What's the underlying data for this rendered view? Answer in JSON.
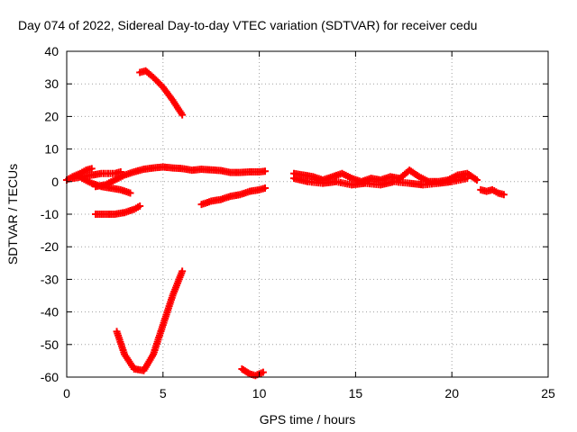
{
  "chart_data": {
    "type": "scatter",
    "title": "Day 074 of 2022, Sidereal Day-to-day VTEC variation (SDTVAR) for receiver cedu",
    "xlabel": "GPS time / hours",
    "ylabel": "SDTVAR / TECUs",
    "xlim": [
      0,
      25
    ],
    "ylim": [
      -60,
      40
    ],
    "xticks": [
      0,
      5,
      10,
      15,
      20,
      25
    ],
    "yticks": [
      -60,
      -50,
      -40,
      -30,
      -20,
      -10,
      0,
      10,
      20,
      30,
      40
    ],
    "grid": true,
    "legend": "none",
    "series_color": "#ff0000",
    "segments": [
      {
        "x": [
          0.0,
          0.3,
          0.7,
          1.0,
          1.3
        ],
        "y": [
          0.5,
          1.5,
          2.5,
          3.5,
          4.0
        ]
      },
      {
        "x": [
          0.3,
          0.8,
          1.3,
          1.8,
          2.5,
          2.8
        ],
        "y": [
          1.0,
          1.5,
          2.0,
          2.5,
          2.5,
          3.0
        ]
      },
      {
        "x": [
          0.8,
          1.3,
          1.8,
          2.3,
          2.8,
          3.3
        ],
        "y": [
          1.0,
          -0.5,
          -1.5,
          -2.0,
          -2.5,
          -3.5
        ]
      },
      {
        "x": [
          1.5,
          2.0,
          2.5,
          3.0,
          3.5,
          4.0,
          4.5,
          5.0,
          5.5,
          6.0,
          6.5,
          7.0,
          7.5,
          8.0,
          8.5,
          9.0,
          9.5,
          10.0,
          10.3
        ],
        "y": [
          -1.5,
          -1.0,
          0.5,
          2.0,
          3.0,
          3.8,
          4.2,
          4.5,
          4.2,
          4.0,
          3.5,
          3.8,
          3.6,
          3.4,
          2.8,
          2.8,
          3.0,
          3.0,
          3.2
        ]
      },
      {
        "x": [
          3.8,
          4.1,
          4.5,
          5.0,
          5.5,
          6.0
        ],
        "y": [
          33.5,
          34.0,
          32.0,
          29.0,
          25.0,
          20.5
        ]
      },
      {
        "x": [
          1.5,
          2.0,
          2.5,
          3.0,
          3.5,
          3.8
        ],
        "y": [
          -10.0,
          -10.0,
          -10.0,
          -9.5,
          -8.5,
          -7.5
        ]
      },
      {
        "x": [
          7.0,
          7.5,
          8.0,
          8.5,
          9.0,
          9.5,
          10.0,
          10.3
        ],
        "y": [
          -7.0,
          -6.0,
          -5.5,
          -4.5,
          -4.0,
          -3.0,
          -2.5,
          -2.0
        ]
      },
      {
        "x": [
          2.6,
          3.0,
          3.5,
          4.0,
          4.5,
          5.0,
          5.5,
          6.0
        ],
        "y": [
          -46.0,
          -53.0,
          -57.5,
          -58.0,
          -53.0,
          -44.0,
          -35.0,
          -27.5
        ]
      },
      {
        "x": [
          9.1,
          9.5,
          9.8,
          10.2
        ],
        "y": [
          -57.5,
          -59.0,
          -59.5,
          -58.5
        ]
      },
      {
        "x": [
          11.8,
          12.3,
          12.8,
          13.3,
          13.8,
          14.3,
          14.8,
          15.3,
          15.8,
          16.3,
          16.8,
          17.3,
          17.8,
          18.3,
          18.8,
          19.3,
          19.8,
          20.3,
          20.8,
          21.3
        ],
        "y": [
          2.5,
          2.0,
          1.5,
          0.5,
          1.5,
          2.5,
          1.0,
          0.0,
          1.0,
          0.5,
          1.5,
          1.0,
          3.5,
          1.5,
          0.0,
          0.0,
          0.5,
          2.0,
          2.5,
          0.5
        ]
      },
      {
        "x": [
          11.8,
          12.5,
          13.3,
          14.0,
          14.8,
          15.5,
          16.3,
          17.0,
          17.8,
          18.5,
          19.3,
          20.0,
          20.8
        ],
        "y": [
          1.0,
          0.0,
          -0.5,
          0.0,
          -1.0,
          -0.5,
          -1.0,
          0.0,
          -0.5,
          -1.0,
          -0.5,
          0.0,
          1.0
        ]
      },
      {
        "x": [
          21.5,
          21.8,
          22.1,
          22.4,
          22.7
        ],
        "y": [
          -2.5,
          -3.0,
          -2.5,
          -3.5,
          -4.0
        ]
      }
    ]
  }
}
